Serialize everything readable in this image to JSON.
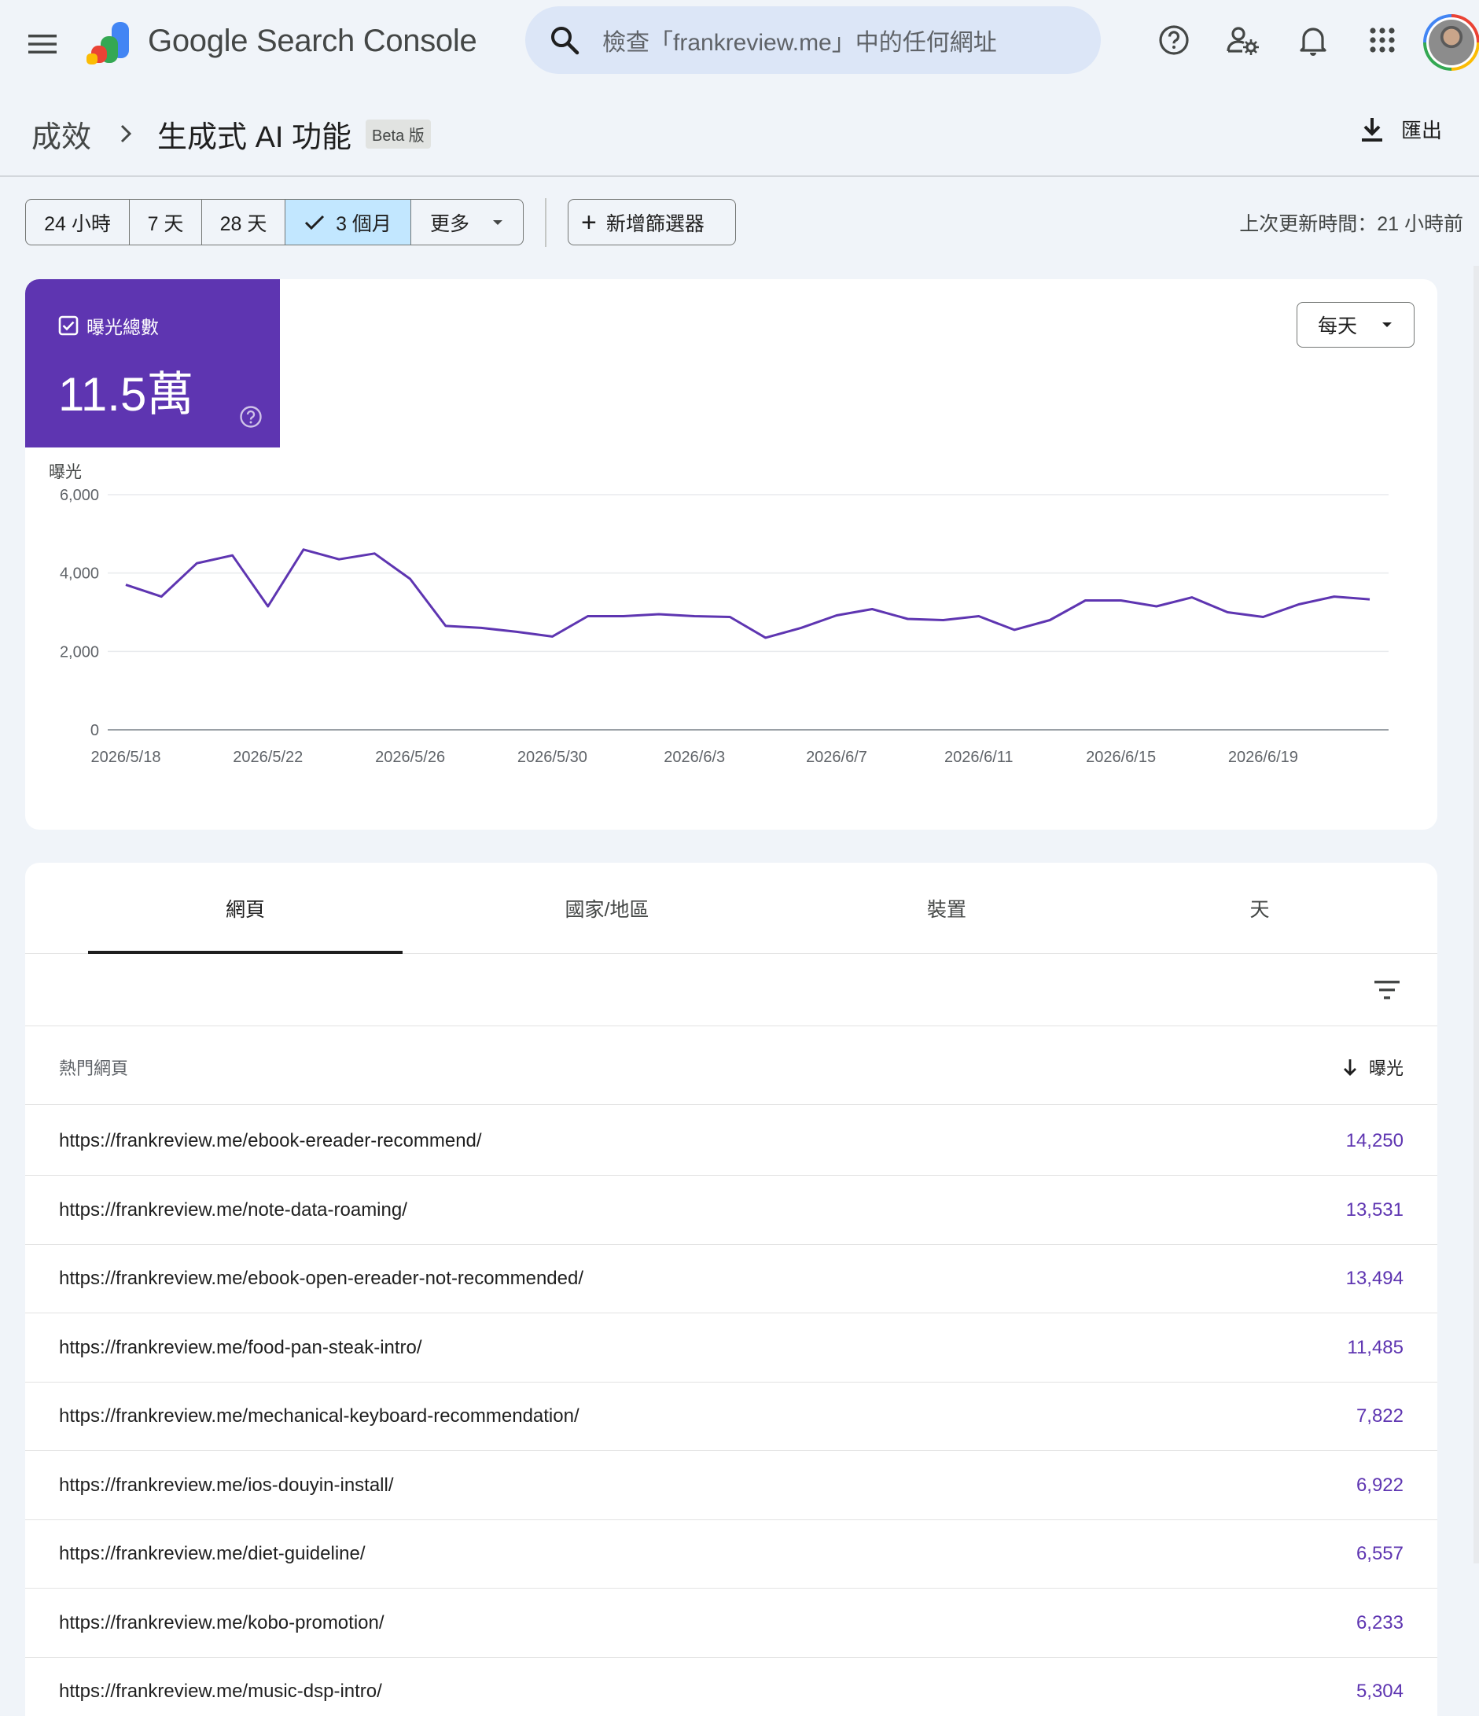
{
  "header": {
    "product_name": "Google Search Console",
    "search_placeholder": "檢查「frankreview.me」中的任何網址",
    "icons": [
      "menu-icon",
      "help-icon",
      "admin-settings-icon",
      "notifications-icon",
      "apps-icon"
    ]
  },
  "breadcrumb": {
    "parent": "成效",
    "current": "生成式 AI 功能",
    "badge": "Beta 版"
  },
  "export_label": "匯出",
  "date_range": {
    "options": [
      "24 小時",
      "7 天",
      "28 天",
      "3 個月",
      "更多"
    ],
    "selected": "3 個月"
  },
  "add_filter_label": "新增篩選器",
  "last_updated": "上次更新時間：21 小時前",
  "metric": {
    "label": "曝光總數",
    "value": "11.5萬",
    "color": "#5e35b1"
  },
  "granularity": "每天",
  "chart_data": {
    "type": "line",
    "ylabel": "曝光",
    "ylim": [
      0,
      6000
    ],
    "yticks": [
      0,
      2000,
      4000,
      6000
    ],
    "ytick_labels": [
      "0",
      "2,000",
      "4,000",
      "6,000"
    ],
    "xtick_labels": [
      "2026/5/18",
      "2026/5/22",
      "2026/5/26",
      "2026/5/30",
      "2026/6/3",
      "2026/6/7",
      "2026/6/11",
      "2026/6/15",
      "2026/6/19"
    ],
    "x": [
      "2026/5/18",
      "2026/5/19",
      "2026/5/20",
      "2026/5/21",
      "2026/5/22",
      "2026/5/23",
      "2026/5/24",
      "2026/5/25",
      "2026/5/26",
      "2026/5/27",
      "2026/5/28",
      "2026/5/29",
      "2026/5/30",
      "2026/5/31",
      "2026/6/1",
      "2026/6/2",
      "2026/6/3",
      "2026/6/4",
      "2026/6/5",
      "2026/6/6",
      "2026/6/7",
      "2026/6/8",
      "2026/6/9",
      "2026/6/10",
      "2026/6/11",
      "2026/6/12",
      "2026/6/13",
      "2026/6/14",
      "2026/6/15",
      "2026/6/16",
      "2026/6/17",
      "2026/6/18",
      "2026/6/19",
      "2026/6/20",
      "2026/6/21",
      "2026/6/22"
    ],
    "series": [
      {
        "values": [
          3700,
          3400,
          4250,
          4450,
          3150,
          4600,
          4350,
          4500,
          3850,
          2650,
          2600,
          2500,
          2380,
          2900,
          2900,
          2950,
          2900,
          2880,
          2350,
          2600,
          2920,
          3080,
          2830,
          2800,
          2900,
          2550,
          2800,
          3300,
          3300,
          3150,
          3380,
          3000,
          2880,
          3200,
          3400,
          3330
        ],
        "color": "#5e35b1"
      }
    ]
  },
  "tabs": [
    {
      "label": "網頁",
      "active": true
    },
    {
      "label": "國家/地區",
      "active": false
    },
    {
      "label": "裝置",
      "active": false
    },
    {
      "label": "天",
      "active": false
    }
  ],
  "table": {
    "col_left": "熱門網頁",
    "col_right": "曝光",
    "rows": [
      {
        "url": "https://frankreview.me/ebook-ereader-recommend/",
        "impressions": "14,250"
      },
      {
        "url": "https://frankreview.me/note-data-roaming/",
        "impressions": "13,531"
      },
      {
        "url": "https://frankreview.me/ebook-open-ereader-not-recommended/",
        "impressions": "13,494"
      },
      {
        "url": "https://frankreview.me/food-pan-steak-intro/",
        "impressions": "11,485"
      },
      {
        "url": "https://frankreview.me/mechanical-keyboard-recommendation/",
        "impressions": "7,822"
      },
      {
        "url": "https://frankreview.me/ios-douyin-install/",
        "impressions": "6,922"
      },
      {
        "url": "https://frankreview.me/diet-guideline/",
        "impressions": "6,557"
      },
      {
        "url": "https://frankreview.me/kobo-promotion/",
        "impressions": "6,233"
      },
      {
        "url": "https://frankreview.me/music-dsp-intro/",
        "impressions": "5,304"
      }
    ]
  }
}
